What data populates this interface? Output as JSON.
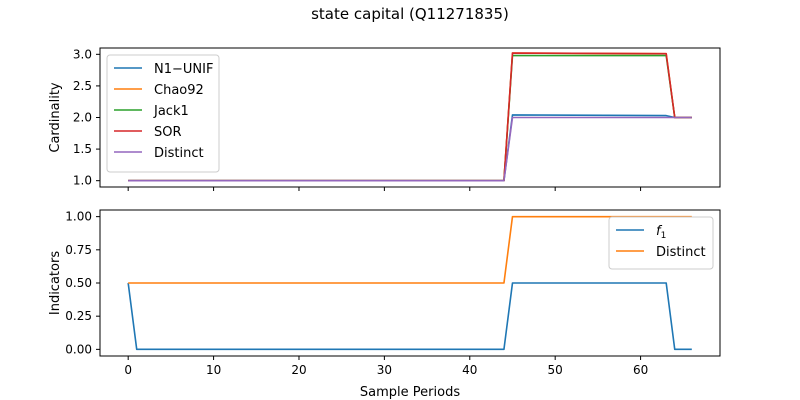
{
  "figure": {
    "title": "state capital (Q11271835)",
    "xlabel": "Sample Periods"
  },
  "chart_data": [
    {
      "type": "line",
      "panel": "top",
      "ylabel": "Cardinality",
      "xlim": [
        -3.3,
        69.3
      ],
      "ylim": [
        0.9,
        3.1
      ],
      "xticks": [
        0,
        10,
        20,
        30,
        40,
        50,
        60
      ],
      "xtick_labels_visible": false,
      "yticks": [
        1.0,
        1.5,
        2.0,
        2.5,
        3.0
      ],
      "ytick_labels": [
        "1.0",
        "1.5",
        "2.0",
        "2.5",
        "3.0"
      ],
      "legend_position": "upper-left",
      "series": [
        {
          "name": "N1−UNIF",
          "color": "#1f77b4",
          "points": [
            [
              0,
              1.0
            ],
            [
              44,
              1.0
            ],
            [
              45,
              2.04
            ],
            [
              63,
              2.03
            ],
            [
              64,
              2.0
            ],
            [
              66,
              2.0
            ]
          ]
        },
        {
          "name": "Chao92",
          "color": "#ff7f0e",
          "points": [
            [
              0,
              1.0
            ],
            [
              44,
              1.0
            ],
            [
              45,
              3.02
            ],
            [
              63,
              3.01
            ],
            [
              64,
              2.0
            ],
            [
              66,
              2.0
            ]
          ]
        },
        {
          "name": "Jack1",
          "color": "#2ca02c",
          "points": [
            [
              0,
              1.0
            ],
            [
              44,
              1.0
            ],
            [
              45,
              2.98
            ],
            [
              63,
              2.98
            ],
            [
              64,
              2.0
            ],
            [
              66,
              2.0
            ]
          ]
        },
        {
          "name": "SOR",
          "color": "#d62728",
          "points": [
            [
              0,
              1.0
            ],
            [
              44,
              1.0
            ],
            [
              45,
              3.02
            ],
            [
              63,
              3.01
            ],
            [
              64,
              2.0
            ],
            [
              66,
              2.0
            ]
          ]
        },
        {
          "name": "Distinct",
          "color": "#9467bd",
          "points": [
            [
              0,
              1.0
            ],
            [
              44,
              1.0
            ],
            [
              45,
              2.0
            ],
            [
              66,
              2.0
            ]
          ]
        }
      ]
    },
    {
      "type": "line",
      "panel": "bottom",
      "ylabel": "Indicators",
      "xlabel": "Sample Periods",
      "xlim": [
        -3.3,
        69.3
      ],
      "ylim": [
        -0.05,
        1.05
      ],
      "xticks": [
        0,
        10,
        20,
        30,
        40,
        50,
        60
      ],
      "xtick_labels": [
        "0",
        "10",
        "20",
        "30",
        "40",
        "50",
        "60"
      ],
      "yticks": [
        0.0,
        0.25,
        0.5,
        0.75,
        1.0
      ],
      "ytick_labels": [
        "0.00",
        "0.25",
        "0.50",
        "0.75",
        "1.00"
      ],
      "legend_position": "upper-right",
      "series": [
        {
          "name": "f1",
          "name_base": "f",
          "name_sub": "1",
          "color": "#1f77b4",
          "points": [
            [
              0,
              0.5
            ],
            [
              1,
              0.0
            ],
            [
              44,
              0.0
            ],
            [
              45,
              0.5
            ],
            [
              63,
              0.5
            ],
            [
              64,
              0.0
            ],
            [
              66,
              0.0
            ]
          ]
        },
        {
          "name": "Distinct",
          "color": "#ff7f0e",
          "points": [
            [
              0,
              0.5
            ],
            [
              44,
              0.5
            ],
            [
              45,
              1.0
            ],
            [
              66,
              1.0
            ]
          ]
        }
      ]
    }
  ]
}
